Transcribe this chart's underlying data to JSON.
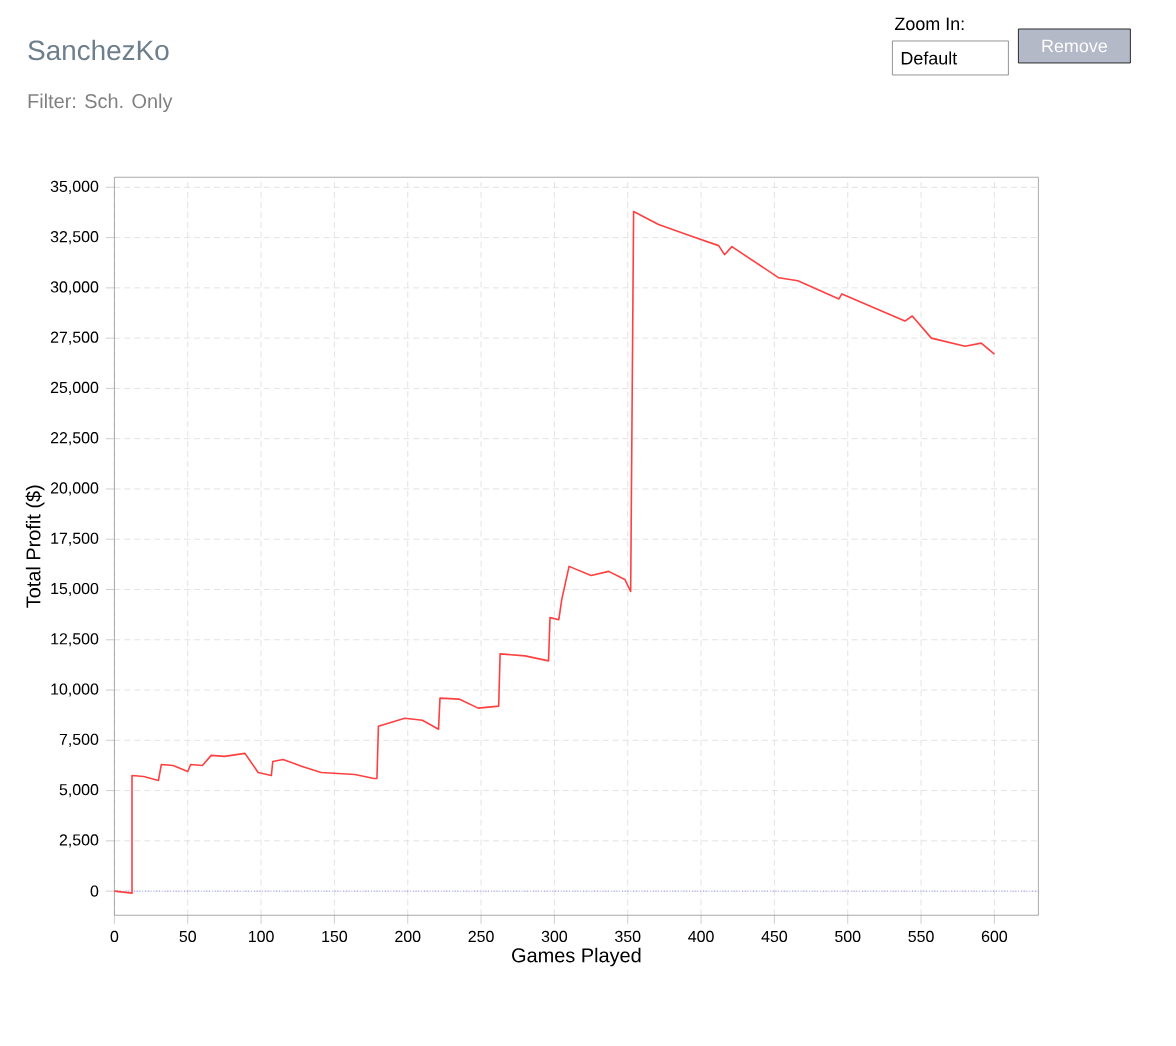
{
  "chart_data": {
    "type": "line",
    "title": "SanchezKo",
    "subtitle": "Filter: Sch. Only",
    "xlabel": "Games Played",
    "ylabel": "Total Profit ($)",
    "annotations": [
      "Zoom In:",
      "Default",
      "Remove"
    ],
    "series": [
      {
        "color": "#ff4040",
        "x": [
          0,
          12,
          12,
          20,
          30,
          32,
          40,
          50,
          52,
          60,
          66,
          75,
          89,
          98,
          107,
          108,
          115,
          128,
          141,
          164,
          177,
          179,
          180,
          198,
          210,
          221,
          222,
          235,
          248,
          262,
          263,
          280,
          296,
          297,
          303,
          305,
          310,
          325,
          337,
          348,
          352,
          354,
          371,
          394,
          412,
          416,
          421,
          453,
          466,
          494,
          496,
          539,
          544,
          557,
          580,
          591,
          600
        ],
        "values": [
          0,
          -100,
          5750,
          5700,
          5500,
          6300,
          6250,
          5950,
          6300,
          6250,
          6750,
          6700,
          6850,
          5900,
          5750,
          6450,
          6550,
          6200,
          5900,
          5800,
          5600,
          5600,
          8200,
          8600,
          8500,
          8050,
          9600,
          9550,
          9100,
          9200,
          11800,
          11700,
          11450,
          13600,
          13500,
          14500,
          16150,
          15700,
          15900,
          15500,
          14900,
          33800,
          33150,
          32550,
          32100,
          31650,
          32050,
          30500,
          30350,
          29450,
          29700,
          28350,
          28600,
          27500,
          27100,
          27250,
          26700
        ]
      }
    ],
    "xlim": [
      0,
      630
    ],
    "ylim": [
      -1200,
      35500
    ],
    "xticks": [
      0,
      50,
      100,
      150,
      200,
      250,
      300,
      350,
      400,
      450,
      500,
      550,
      600
    ],
    "yticks": [
      0,
      {
        "value": 2500,
        "label": "2,500"
      },
      {
        "value": 5000,
        "label": "5,000"
      },
      {
        "value": 7500,
        "label": "7,500"
      },
      {
        "value": 10000,
        "label": "10,000"
      },
      {
        "value": 12500,
        "label": "12,500"
      },
      {
        "value": 15000,
        "label": "15,000"
      },
      {
        "value": 17500,
        "label": "17,500"
      },
      {
        "value": 20000,
        "label": "20,000"
      },
      {
        "value": 22500,
        "label": "22,500"
      },
      {
        "value": 25000,
        "label": "25,000"
      },
      {
        "value": 27500,
        "label": "27,500"
      },
      {
        "value": 30000,
        "label": "30,000"
      },
      {
        "value": 32500,
        "label": "32,500"
      },
      {
        "value": 35000,
        "label": "35,000"
      }
    ],
    "grid": true,
    "marker": "none",
    "line_style": "solid",
    "ref_lines": [
      {
        "axis": "y",
        "value": 0,
        "color": "#6060ff",
        "line_style": "dotted"
      }
    ]
  }
}
